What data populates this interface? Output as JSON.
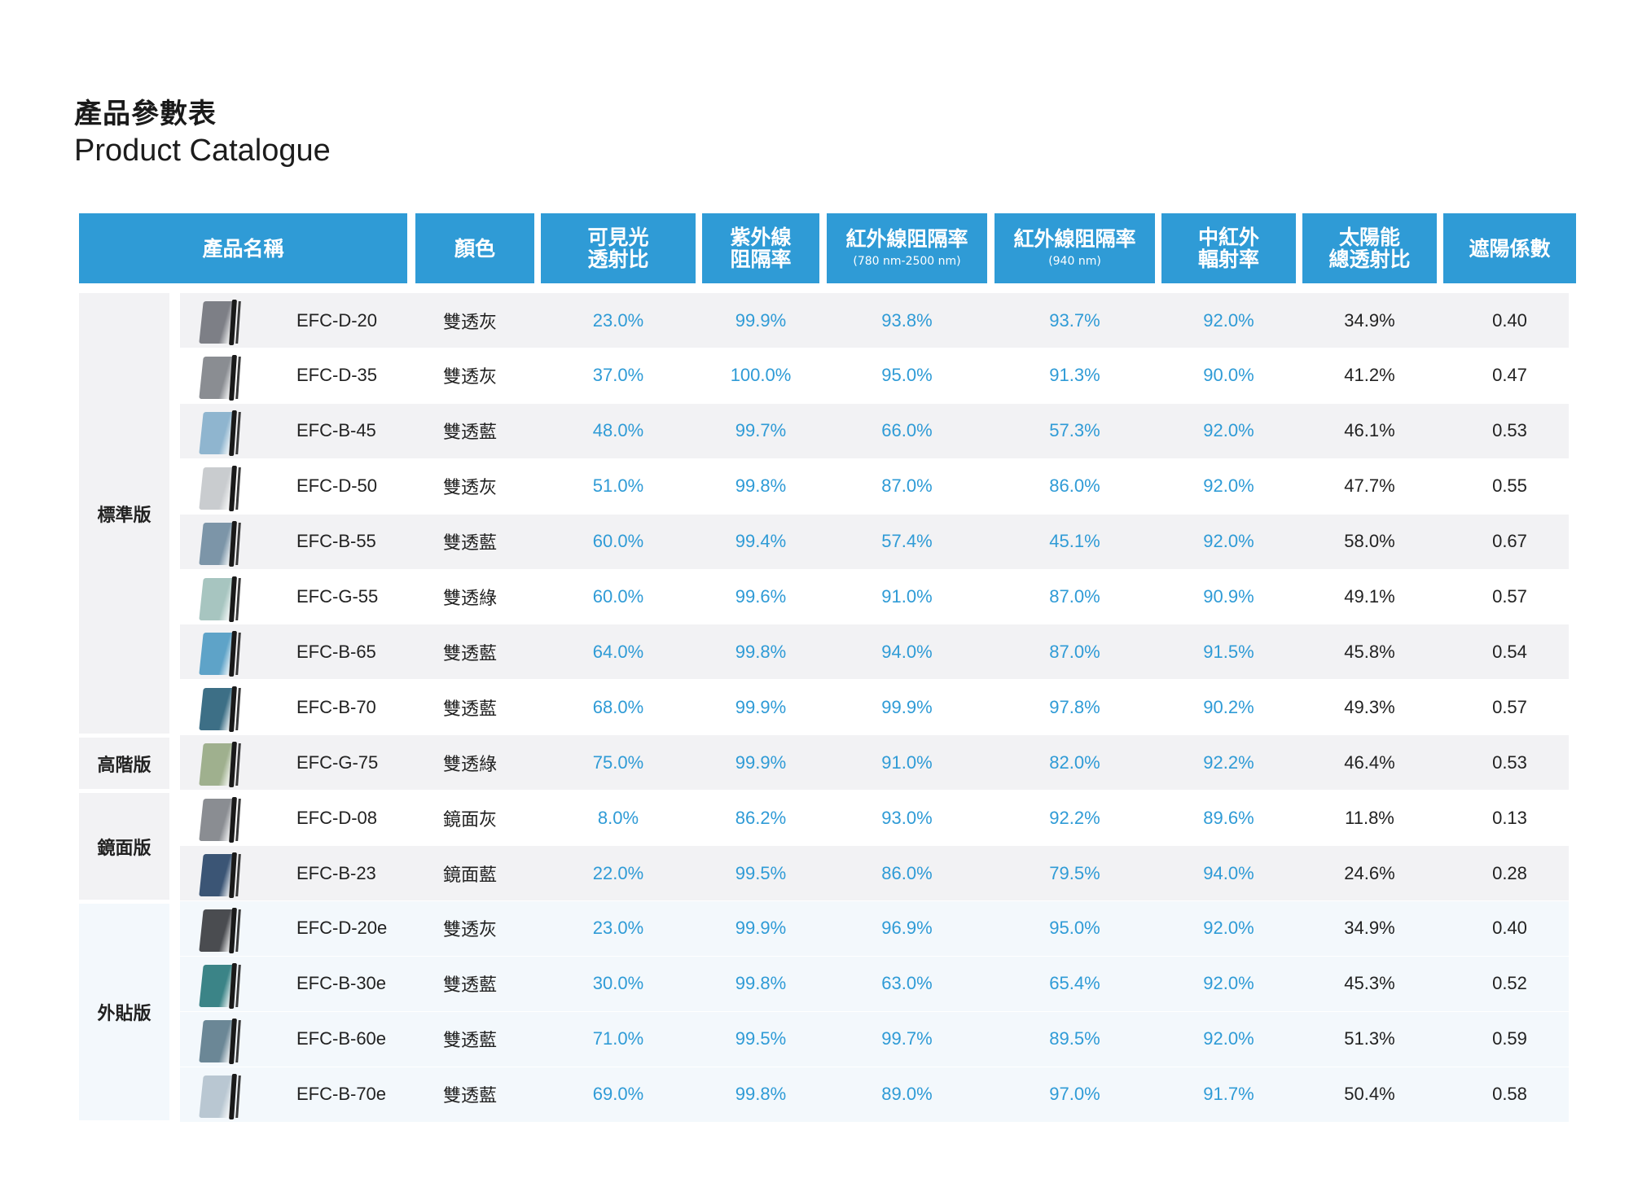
{
  "title_zh": "產品參數表",
  "title_en": "Product Catalogue",
  "headers": {
    "name": "產品名稱",
    "color": "顏色",
    "vlt": [
      "可見光",
      "透射比"
    ],
    "uv": [
      "紫外線",
      "阻隔率"
    ],
    "ir1": [
      "紅外線阻隔率",
      "(780 nm-2500 nm)"
    ],
    "ir2": [
      "紅外線阻隔率",
      "(940 nm)"
    ],
    "mir": [
      "中紅外",
      "輻射率"
    ],
    "tse": [
      "太陽能",
      "總透射比"
    ],
    "sc": "遮陽係數"
  },
  "groups": [
    {
      "label": "標準版"
    },
    {
      "label": "高階版"
    },
    {
      "label": "鏡面版"
    },
    {
      "label": "外貼版"
    }
  ],
  "swatch_colors": {
    "grey_dark": "#7d7f86",
    "grey_mid": "#8a8d92",
    "blue_light": "#8fb5cf",
    "grey_light": "#c9cccf",
    "blue_grey": "#7c95a8",
    "green_light": "#a7c5c0",
    "blue_mid": "#5ea3c8",
    "teal_dark": "#3d6f86",
    "green_olive": "#9fb08e",
    "navy": "#3b5575",
    "charcoal": "#4a4c50",
    "teal": "#3b8487",
    "steel": "#6b8796",
    "ice": "#b9c7d2"
  },
  "rows": [
    {
      "name": "EFC-D-20",
      "color": "雙透灰",
      "vlt": "23.0%",
      "uv": "99.9%",
      "ir1": "93.8%",
      "ir2": "93.7%",
      "mir": "92.0%",
      "tse": "34.9%",
      "sc": "0.40"
    },
    {
      "name": "EFC-D-35",
      "color": "雙透灰",
      "vlt": "37.0%",
      "uv": "100.0%",
      "ir1": "95.0%",
      "ir2": "91.3%",
      "mir": "90.0%",
      "tse": "41.2%",
      "sc": "0.47"
    },
    {
      "name": "EFC-B-45",
      "color": "雙透藍",
      "vlt": "48.0%",
      "uv": "99.7%",
      "ir1": "66.0%",
      "ir2": "57.3%",
      "mir": "92.0%",
      "tse": "46.1%",
      "sc": "0.53"
    },
    {
      "name": "EFC-D-50",
      "color": "雙透灰",
      "vlt": "51.0%",
      "uv": "99.8%",
      "ir1": "87.0%",
      "ir2": "86.0%",
      "mir": "92.0%",
      "tse": "47.7%",
      "sc": "0.55"
    },
    {
      "name": "EFC-B-55",
      "color": "雙透藍",
      "vlt": "60.0%",
      "uv": "99.4%",
      "ir1": "57.4%",
      "ir2": "45.1%",
      "mir": "92.0%",
      "tse": "58.0%",
      "sc": "0.67"
    },
    {
      "name": "EFC-G-55",
      "color": "雙透綠",
      "vlt": "60.0%",
      "uv": "99.6%",
      "ir1": "91.0%",
      "ir2": "87.0%",
      "mir": "90.9%",
      "tse": "49.1%",
      "sc": "0.57"
    },
    {
      "name": "EFC-B-65",
      "color": "雙透藍",
      "vlt": "64.0%",
      "uv": "99.8%",
      "ir1": "94.0%",
      "ir2": "87.0%",
      "mir": "91.5%",
      "tse": "45.8%",
      "sc": "0.54"
    },
    {
      "name": "EFC-B-70",
      "color": "雙透藍",
      "vlt": "68.0%",
      "uv": "99.9%",
      "ir1": "99.9%",
      "ir2": "97.8%",
      "mir": "90.2%",
      "tse": "49.3%",
      "sc": "0.57"
    },
    {
      "name": "EFC-G-75",
      "color": "雙透綠",
      "vlt": "75.0%",
      "uv": "99.9%",
      "ir1": "91.0%",
      "ir2": "82.0%",
      "mir": "92.2%",
      "tse": "46.4%",
      "sc": "0.53"
    },
    {
      "name": "EFC-D-08",
      "color": "鏡面灰",
      "vlt": "8.0%",
      "uv": "86.2%",
      "ir1": "93.0%",
      "ir2": "92.2%",
      "mir": "89.6%",
      "tse": "11.8%",
      "sc": "0.13"
    },
    {
      "name": "EFC-B-23",
      "color": "鏡面藍",
      "vlt": "22.0%",
      "uv": "99.5%",
      "ir1": "86.0%",
      "ir2": "79.5%",
      "mir": "94.0%",
      "tse": "24.6%",
      "sc": "0.28"
    },
    {
      "name": "EFC-D-20e",
      "color": "雙透灰",
      "vlt": "23.0%",
      "uv": "99.9%",
      "ir1": "96.9%",
      "ir2": "95.0%",
      "mir": "92.0%",
      "tse": "34.9%",
      "sc": "0.40"
    },
    {
      "name": "EFC-B-30e",
      "color": "雙透藍",
      "vlt": "30.0%",
      "uv": "99.8%",
      "ir1": "63.0%",
      "ir2": "65.4%",
      "mir": "92.0%",
      "tse": "45.3%",
      "sc": "0.52"
    },
    {
      "name": "EFC-B-60e",
      "color": "雙透藍",
      "vlt": "71.0%",
      "uv": "99.5%",
      "ir1": "99.7%",
      "ir2": "89.5%",
      "mir": "92.0%",
      "tse": "51.3%",
      "sc": "0.59"
    },
    {
      "name": "EFC-B-70e",
      "color": "雙透藍",
      "vlt": "69.0%",
      "uv": "99.8%",
      "ir1": "89.0%",
      "ir2": "97.0%",
      "mir": "91.7%",
      "tse": "50.4%",
      "sc": "0.58"
    }
  ],
  "theme": {
    "header_blue": "#2f9bd6",
    "value_blue": "#2f9bd6",
    "row_stripe": "#f2f2f4",
    "group_bg": "#f2f2f4",
    "external_bg": "#f3f8fc"
  }
}
